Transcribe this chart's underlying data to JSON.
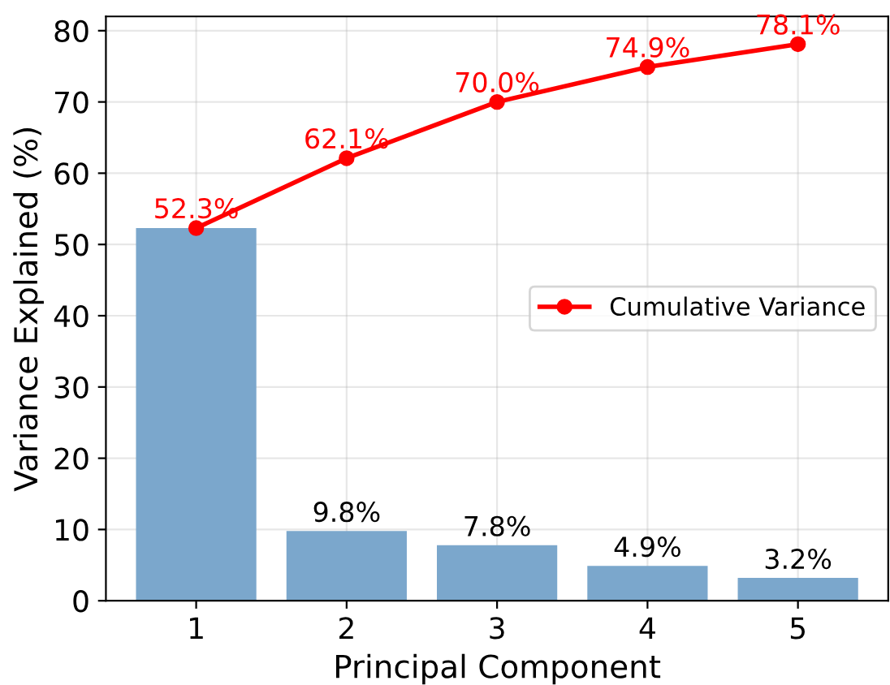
{
  "chart_data": {
    "type": "bar",
    "xlabel": "Principal Component",
    "ylabel": "Variance Explained (%)",
    "categories": [
      "1",
      "2",
      "3",
      "4",
      "5"
    ],
    "series": [
      {
        "color": "#7ba7cc",
        "values": [
          52.3,
          9.8,
          7.8,
          4.9,
          3.2
        ],
        "value_labels": [
          null,
          "9.8%",
          "7.8%",
          "4.9%",
          "3.2%"
        ]
      },
      {
        "type": "line",
        "name": "Cumulative Variance",
        "color": "#ff0000",
        "values": [
          52.3,
          62.1,
          70.0,
          74.9,
          78.1
        ],
        "value_labels": [
          "52.3%",
          "62.1%",
          "70.0%",
          "74.9%",
          "78.1%"
        ],
        "marker": "circle",
        "line_style": "solid"
      }
    ],
    "ylim": [
      0,
      82
    ],
    "yticks": [
      0,
      10,
      20,
      30,
      40,
      50,
      60,
      70,
      80
    ],
    "grid": true,
    "legend": "center right"
  }
}
